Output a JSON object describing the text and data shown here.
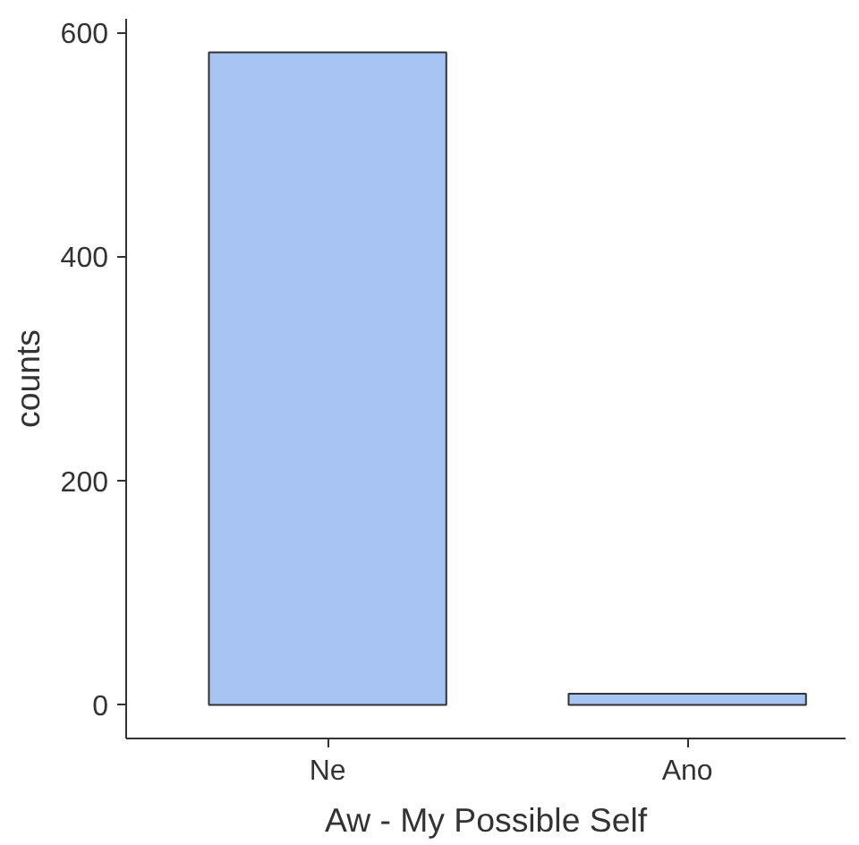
{
  "chart_data": {
    "type": "bar",
    "xlabel": "Aw - My Possible Self",
    "ylabel": "counts",
    "categories": [
      "Ne",
      "Ano"
    ],
    "values": [
      582,
      10
    ],
    "color": "#a8c4f2",
    "ylim": [
      -30,
      612
    ],
    "yticks": [
      0,
      200,
      400,
      600
    ],
    "grid": false
  }
}
